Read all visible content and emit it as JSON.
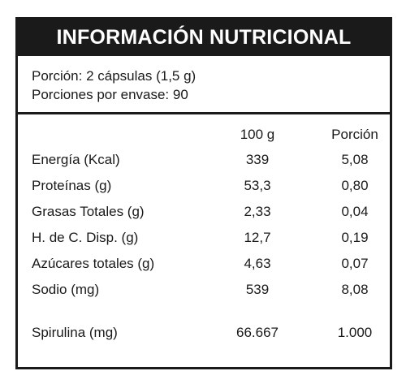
{
  "title": "INFORMACIÓN NUTRICIONAL",
  "serving": {
    "portion": "Porción: 2 cápsulas (1,5 g)",
    "per_container": "Porciones por envase: 90"
  },
  "columns": {
    "per100": "100 g",
    "portion": "Porción"
  },
  "rows": [
    {
      "name": "Energía (Kcal)",
      "per100": "339",
      "portion": "5,08"
    },
    {
      "name": "Proteínas (g)",
      "per100": "53,3",
      "portion": "0,80"
    },
    {
      "name": "Grasas Totales (g)",
      "per100": "2,33",
      "portion": "0,04"
    },
    {
      "name": "H. de C. Disp. (g)",
      "per100": "12,7",
      "portion": "0,19"
    },
    {
      "name": "Azúcares totales (g)",
      "per100": "4,63",
      "portion": "0,07"
    },
    {
      "name": "Sodio (mg)",
      "per100": "539",
      "portion": "8,08"
    },
    {
      "name": "Spirulina (mg)",
      "per100": "66.667",
      "portion": "1.000"
    }
  ]
}
